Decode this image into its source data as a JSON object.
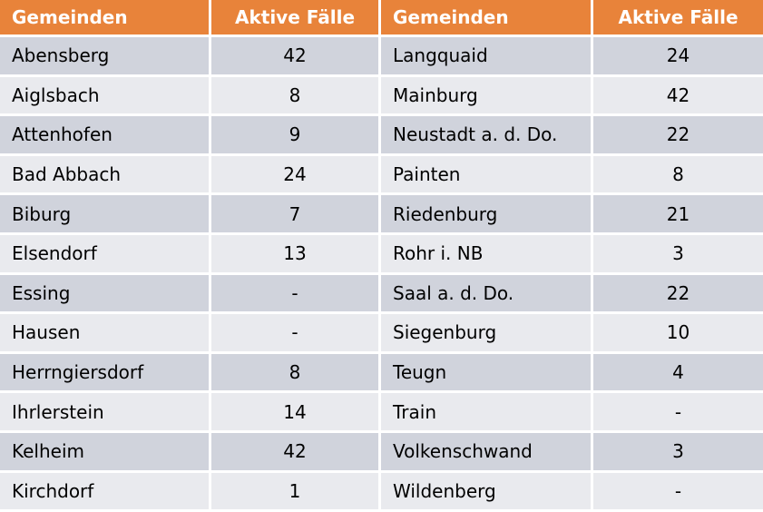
{
  "headers": {
    "left_municipality": "Gemeinden",
    "left_cases": "Aktive Fälle",
    "right_municipality": "Gemeinden",
    "right_cases": "Aktive Fälle"
  },
  "rows": [
    {
      "left_name": "Abensberg",
      "left_value": "42",
      "right_name": "Langquaid",
      "right_value": "24"
    },
    {
      "left_name": "Aiglsbach",
      "left_value": "8",
      "right_name": "Mainburg",
      "right_value": "42"
    },
    {
      "left_name": "Attenhofen",
      "left_value": "9",
      "right_name": "Neustadt a. d. Do.",
      "right_value": "22"
    },
    {
      "left_name": "Bad Abbach",
      "left_value": "24",
      "right_name": "Painten",
      "right_value": "8"
    },
    {
      "left_name": "Biburg",
      "left_value": "7",
      "right_name": "Riedenburg",
      "right_value": "21"
    },
    {
      "left_name": "Elsendorf",
      "left_value": "13",
      "right_name": "Rohr i. NB",
      "right_value": "3"
    },
    {
      "left_name": "Essing",
      "left_value": "-",
      "right_name": "Saal a. d. Do.",
      "right_value": "22"
    },
    {
      "left_name": "Hausen",
      "left_value": "-",
      "right_name": "Siegenburg",
      "right_value": "10"
    },
    {
      "left_name": "Herrngiersdorf",
      "left_value": "8",
      "right_name": "Teugn",
      "right_value": "4"
    },
    {
      "left_name": "Ihrlerstein",
      "left_value": "14",
      "right_name": "Train",
      "right_value": "-"
    },
    {
      "left_name": "Kelheim",
      "left_value": "42",
      "right_name": "Volkenschwand",
      "right_value": "3"
    },
    {
      "left_name": "Kirchdorf",
      "left_value": "1",
      "right_name": "Wildenberg",
      "right_value": "-"
    }
  ]
}
